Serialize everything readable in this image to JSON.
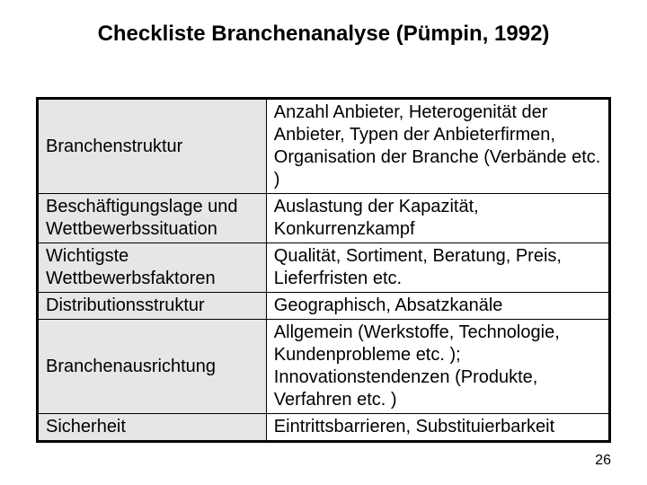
{
  "title": "Checkliste Branchenanalyse (Pümpin, 1992)",
  "title_fontsize": 24,
  "body_fontsize": 20,
  "pagenum_fontsize": 16,
  "page_number": "26",
  "colors": {
    "background": "#ffffff",
    "text": "#000000",
    "table_border": "#000000",
    "left_col_bg": "#e6e6e6"
  },
  "table": {
    "col_widths_pct": [
      40,
      60
    ],
    "rows": [
      {
        "left": "Branchenstruktur",
        "right": "Anzahl Anbieter, Heterogenität der Anbieter, Typen der Anbieterfirmen, Organisation der Branche (Verbände etc. )"
      },
      {
        "left": "Beschäftigungslage und Wettbewerbssituation",
        "right": "Auslastung der Kapazität, Konkurrenzkampf"
      },
      {
        "left": "Wichtigste Wettbewerbsfaktoren",
        "right": "Qualität, Sortiment, Beratung, Preis, Lieferfristen etc."
      },
      {
        "left": "Distributionsstruktur",
        "right": "Geographisch, Absatzkanäle"
      },
      {
        "left": "Branchenausrichtung",
        "right": "Allgemein (Werkstoffe, Technologie, Kundenprobleme etc. ); Innovationstendenzen (Produkte, Verfahren etc. )"
      },
      {
        "left": "Sicherheit",
        "right": "Eintrittsbarrieren, Substituierbarkeit"
      }
    ]
  }
}
